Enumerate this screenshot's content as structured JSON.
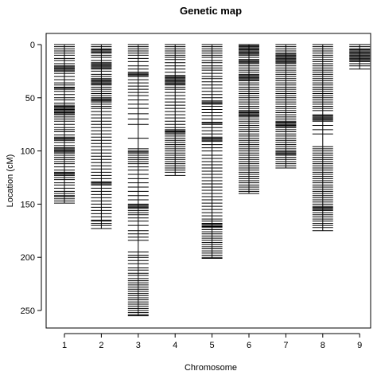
{
  "chart_data": {
    "type": "genetic-map",
    "title": "Genetic map",
    "xlabel": "Chromosome",
    "ylabel": "Location (cM)",
    "ylim": [
      0,
      260
    ],
    "y_reversed": true,
    "yticks": [
      0,
      50,
      100,
      150,
      200,
      250
    ],
    "grid": false,
    "legend": "none",
    "chromosomes": [
      {
        "name": "1",
        "length": 149,
        "markers": [
          0,
          2,
          4,
          6,
          8,
          10,
          13,
          15,
          18,
          20,
          21,
          22,
          23,
          24,
          25,
          27,
          30,
          33,
          36,
          38,
          40,
          41,
          42,
          44,
          47,
          50,
          52,
          55,
          57,
          58,
          59,
          60,
          61,
          62,
          63,
          64,
          65,
          66,
          68,
          70,
          72,
          75,
          78,
          80,
          82,
          85,
          87,
          88,
          89,
          90,
          92,
          95,
          97,
          98,
          99,
          100,
          101,
          102,
          104,
          106,
          108,
          110,
          112,
          115,
          118,
          120,
          121,
          122,
          123,
          125,
          127,
          130,
          132,
          135,
          138,
          140,
          142,
          143,
          145,
          147,
          149
        ]
      },
      {
        "name": "2",
        "length": 173,
        "markers": [
          0,
          2,
          4,
          5,
          6,
          7,
          8,
          10,
          12,
          15,
          17,
          18,
          19,
          20,
          21,
          22,
          23,
          25,
          28,
          30,
          32,
          33,
          34,
          35,
          36,
          37,
          38,
          40,
          42,
          44,
          46,
          48,
          50,
          51,
          52,
          53,
          54,
          56,
          58,
          60,
          63,
          66,
          69,
          72,
          75,
          78,
          81,
          84,
          87,
          90,
          93,
          96,
          99,
          102,
          105,
          108,
          111,
          114,
          117,
          120,
          123,
          126,
          129,
          130,
          131,
          132,
          135,
          138,
          141,
          144,
          147,
          150,
          153,
          156,
          159,
          162,
          165,
          166,
          168,
          170,
          173
        ]
      },
      {
        "name": "3",
        "length": 255,
        "markers": [
          0,
          2,
          4,
          6,
          8,
          10,
          13,
          16,
          20,
          23,
          26,
          27,
          28,
          29,
          30,
          33,
          36,
          39,
          42,
          45,
          48,
          52,
          56,
          60,
          65,
          70,
          75,
          88,
          98,
          100,
          101,
          102,
          104,
          106,
          108,
          110,
          112,
          115,
          118,
          122,
          126,
          130,
          134,
          138,
          142,
          146,
          150,
          151,
          152,
          153,
          154,
          156,
          158,
          160,
          163,
          166,
          170,
          175,
          178,
          181,
          184,
          195,
          198,
          200,
          203,
          206,
          210,
          212,
          215,
          217,
          220,
          222,
          224,
          226,
          228,
          230,
          232,
          234,
          236,
          238,
          240,
          242,
          244,
          246,
          248,
          250,
          252,
          254,
          255
        ]
      },
      {
        "name": "4",
        "length": 123,
        "markers": [
          0,
          2,
          4,
          6,
          8,
          10,
          12,
          14,
          17,
          20,
          23,
          26,
          29,
          30,
          31,
          32,
          33,
          34,
          35,
          36,
          37,
          38,
          40,
          42,
          45,
          48,
          51,
          54,
          57,
          60,
          63,
          66,
          69,
          72,
          75,
          78,
          80,
          81,
          82,
          83,
          84,
          86,
          88,
          90,
          92,
          94,
          96,
          98,
          100,
          102,
          104,
          106,
          108,
          110,
          112,
          114,
          116,
          118,
          120,
          123
        ]
      },
      {
        "name": "5",
        "length": 201,
        "markers": [
          0,
          2,
          4,
          6,
          8,
          10,
          12,
          15,
          17,
          20,
          22,
          24,
          27,
          30,
          32,
          35,
          38,
          41,
          44,
          47,
          50,
          53,
          54,
          55,
          56,
          58,
          61,
          64,
          67,
          70,
          73,
          74,
          75,
          78,
          81,
          84,
          87,
          88,
          89,
          90,
          91,
          94,
          97,
          100,
          104,
          107,
          110,
          113,
          116,
          119,
          122,
          125,
          128,
          131,
          134,
          137,
          140,
          143,
          146,
          149,
          152,
          155,
          158,
          161,
          164,
          166,
          168,
          169,
          170,
          171,
          172,
          174,
          176,
          178,
          180,
          182,
          184,
          186,
          188,
          190,
          192,
          194,
          196,
          198,
          200,
          201
        ]
      },
      {
        "name": "6",
        "length": 140,
        "markers": [
          0,
          1,
          2,
          3,
          4,
          5,
          6,
          7,
          8,
          9,
          10,
          12,
          14,
          15,
          16,
          17,
          18,
          20,
          22,
          24,
          26,
          28,
          29,
          30,
          31,
          32,
          33,
          34,
          36,
          38,
          40,
          42,
          44,
          46,
          48,
          50,
          52,
          54,
          56,
          58,
          60,
          62,
          63,
          64,
          65,
          66,
          67,
          68,
          70,
          72,
          74,
          76,
          78,
          80,
          82,
          84,
          86,
          88,
          90,
          92,
          94,
          96,
          98,
          100,
          102,
          104,
          106,
          108,
          110,
          112,
          114,
          116,
          118,
          120,
          122,
          124,
          126,
          128,
          130,
          132,
          134,
          136,
          138,
          140
        ]
      },
      {
        "name": "7",
        "length": 116,
        "markers": [
          0,
          2,
          4,
          6,
          8,
          9,
          10,
          11,
          12,
          13,
          14,
          15,
          16,
          17,
          18,
          20,
          22,
          24,
          26,
          28,
          30,
          32,
          34,
          36,
          38,
          40,
          42,
          44,
          46,
          48,
          50,
          52,
          54,
          56,
          58,
          60,
          62,
          64,
          66,
          68,
          70,
          72,
          73,
          74,
          75,
          76,
          77,
          78,
          80,
          82,
          84,
          86,
          88,
          90,
          92,
          94,
          96,
          98,
          100,
          101,
          102,
          103,
          104,
          106,
          108,
          110,
          112,
          114,
          116
        ]
      },
      {
        "name": "8",
        "length": 175,
        "markers": [
          0,
          2,
          4,
          6,
          8,
          10,
          12,
          14,
          16,
          18,
          20,
          22,
          24,
          26,
          28,
          30,
          32,
          34,
          36,
          38,
          40,
          42,
          44,
          46,
          48,
          50,
          52,
          54,
          56,
          58,
          60,
          62,
          66,
          67,
          68,
          69,
          70,
          71,
          72,
          76,
          80,
          84,
          96,
          98,
          100,
          102,
          104,
          106,
          108,
          110,
          112,
          114,
          116,
          118,
          120,
          122,
          124,
          126,
          128,
          130,
          132,
          134,
          136,
          138,
          140,
          142,
          144,
          146,
          148,
          150,
          152,
          153,
          154,
          155,
          156,
          158,
          160,
          162,
          164,
          166,
          168,
          170,
          172,
          175
        ]
      },
      {
        "name": "9",
        "length": 23,
        "markers": [
          0,
          2,
          4,
          5,
          6,
          7,
          8,
          9,
          10,
          11,
          12,
          13,
          14,
          15,
          16,
          18,
          20,
          23
        ]
      }
    ]
  }
}
